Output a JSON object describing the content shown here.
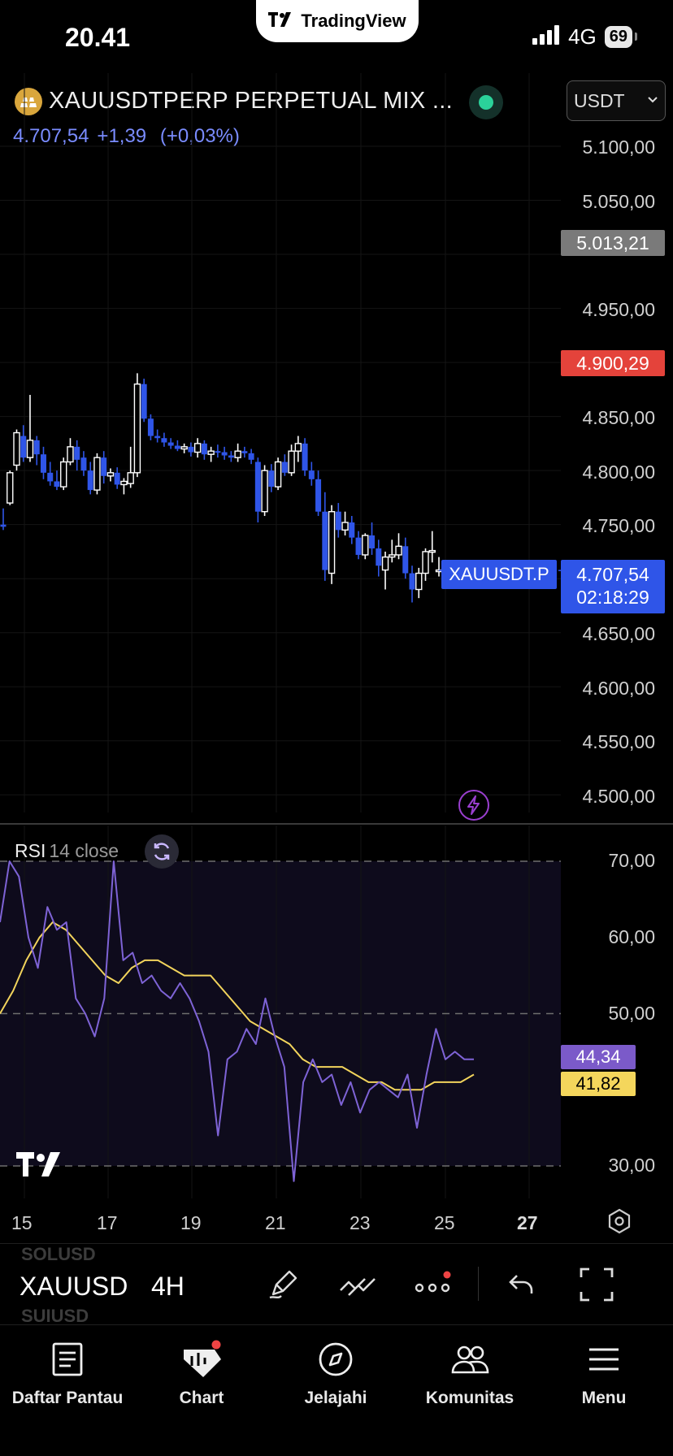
{
  "status_bar": {
    "time": "20.41",
    "network": "4G",
    "battery": "69",
    "app_pill": "TradingView"
  },
  "header": {
    "symbol_title": "XAUUSDTPERP PERPETUAL MIX ...",
    "currency": "USDT",
    "last_price": "4.707,54",
    "change": "+1,39",
    "change_pct": "(+0,03%)"
  },
  "price_axis": [
    "5.100,00",
    "5.050,00",
    "4.950,00",
    "4.850,00",
    "4.800,00",
    "4.750,00",
    "4.650,00",
    "4.600,00",
    "4.550,00",
    "4.500,00"
  ],
  "price_tags": {
    "gray": "5.013,21",
    "red": "4.900,29",
    "current_price": "4.707,54",
    "countdown": "02:18:29",
    "symbol_label": "XAUUSDT.P"
  },
  "rsi": {
    "title": "RSI",
    "params": "14 close",
    "axis": [
      "70,00",
      "60,00",
      "50,00",
      "30,00"
    ],
    "rsi_value": "44,34",
    "ma_value": "41,82",
    "colors": {
      "rsi": "#7e63d6",
      "ma": "#f2d45c"
    }
  },
  "time_axis": [
    "15",
    "17",
    "19",
    "21",
    "23",
    "25",
    "27"
  ],
  "toolbar": {
    "symbol": "XAUUSD",
    "interval": "4H",
    "ghost_above": "SOLUSD",
    "ghost_below": "SUIUSD"
  },
  "bottom_nav": [
    {
      "label": "Daftar Pantau",
      "icon": "watchlist-icon"
    },
    {
      "label": "Chart",
      "icon": "chart-icon"
    },
    {
      "label": "Jelajahi",
      "icon": "compass-icon"
    },
    {
      "label": "Komunitas",
      "icon": "community-icon"
    },
    {
      "label": "Menu",
      "icon": "menu-icon"
    }
  ],
  "chart_data": {
    "type": "candlestick",
    "categories": [
      "15",
      "17",
      "19",
      "21",
      "23",
      "25",
      "27"
    ],
    "series": [
      {
        "ohlc": [
          [
            4750,
            4765,
            4745,
            4748
          ],
          [
            4770,
            4800,
            4768,
            4798
          ],
          [
            4805,
            4838,
            4800,
            4835
          ],
          [
            4832,
            4842,
            4808,
            4812
          ],
          [
            4812,
            4870,
            4808,
            4828
          ],
          [
            4828,
            4832,
            4805,
            4815
          ],
          [
            4815,
            4822,
            4792,
            4798
          ],
          [
            4798,
            4808,
            4786,
            4790
          ],
          [
            4790,
            4800,
            4782,
            4785
          ],
          [
            4785,
            4812,
            4782,
            4808
          ],
          [
            4808,
            4830,
            4805,
            4822
          ],
          [
            4822,
            4828,
            4800,
            4810
          ],
          [
            4812,
            4818,
            4795,
            4800
          ],
          [
            4800,
            4808,
            4778,
            4782
          ],
          [
            4782,
            4816,
            4778,
            4812
          ],
          [
            4812,
            4818,
            4788,
            4795
          ],
          [
            4795,
            4802,
            4790,
            4798
          ],
          [
            4798,
            4803,
            4783,
            4787
          ],
          [
            4787,
            4793,
            4778,
            4790
          ],
          [
            4788,
            4822,
            4784,
            4798
          ],
          [
            4798,
            4890,
            4794,
            4880
          ],
          [
            4880,
            4885,
            4845,
            4848
          ],
          [
            4848,
            4852,
            4828,
            4832
          ],
          [
            4832,
            4838,
            4826,
            4830
          ],
          [
            4830,
            4835,
            4822,
            4826
          ],
          [
            4826,
            4830,
            4820,
            4823
          ],
          [
            4823,
            4828,
            4818,
            4820
          ],
          [
            4820,
            4825,
            4816,
            4822
          ],
          [
            4822,
            4826,
            4813,
            4817
          ],
          [
            4817,
            4830,
            4812,
            4825
          ],
          [
            4825,
            4828,
            4810,
            4815
          ],
          [
            4815,
            4822,
            4808,
            4818
          ],
          [
            4818,
            4824,
            4812,
            4817
          ],
          [
            4817,
            4822,
            4810,
            4814
          ],
          [
            4814,
            4818,
            4808,
            4812
          ],
          [
            4812,
            4825,
            4808,
            4818
          ],
          [
            4818,
            4822,
            4812,
            4816
          ],
          [
            4816,
            4820,
            4806,
            4810
          ],
          [
            4808,
            4812,
            4752,
            4762
          ],
          [
            4762,
            4805,
            4758,
            4800
          ],
          [
            4800,
            4806,
            4780,
            4785
          ],
          [
            4785,
            4812,
            4782,
            4808
          ],
          [
            4808,
            4815,
            4795,
            4798
          ],
          [
            4798,
            4824,
            4795,
            4818
          ],
          [
            4818,
            4832,
            4808,
            4825
          ],
          [
            4825,
            4830,
            4795,
            4800
          ],
          [
            4800,
            4808,
            4786,
            4792
          ],
          [
            4792,
            4800,
            4758,
            4762
          ],
          [
            4762,
            4780,
            4698,
            4708
          ],
          [
            4705,
            4768,
            4695,
            4762
          ],
          [
            4762,
            4770,
            4738,
            4745
          ],
          [
            4745,
            4762,
            4740,
            4752
          ],
          [
            4752,
            4758,
            4732,
            4738
          ],
          [
            4738,
            4744,
            4718,
            4722
          ],
          [
            4722,
            4742,
            4718,
            4740
          ],
          [
            4740,
            4752,
            4722,
            4728
          ],
          [
            4728,
            4736,
            4702,
            4712
          ],
          [
            4708,
            4725,
            4690,
            4720
          ],
          [
            4720,
            4736,
            4715,
            4722
          ],
          [
            4722,
            4742,
            4718,
            4730
          ],
          [
            4730,
            4738,
            4700,
            4705
          ],
          [
            4705,
            4712,
            4678,
            4690
          ],
          [
            4690,
            4710,
            4682,
            4705
          ],
          [
            4705,
            4728,
            4698,
            4725
          ],
          [
            4725,
            4744,
            4715,
            4726
          ],
          [
            4707,
            4720,
            4702,
            4708
          ]
        ]
      }
    ],
    "rsi_series": [
      {
        "name": "RSI",
        "values": [
          62,
          70,
          68,
          60,
          56,
          64,
          61,
          62,
          52,
          50,
          47,
          52,
          70,
          57,
          58,
          54,
          55,
          53,
          52,
          54,
          52,
          49,
          45,
          34,
          44,
          45,
          48,
          46,
          52,
          47,
          43,
          28,
          41,
          44,
          41,
          42,
          38,
          41,
          37,
          40,
          41,
          40,
          39,
          42,
          35,
          42,
          48,
          44,
          45,
          44,
          44
        ]
      },
      {
        "name": "RSI MA",
        "values": [
          50,
          53,
          57,
          60,
          62,
          61,
          59,
          57,
          55,
          54,
          56,
          57,
          57,
          56,
          55,
          55,
          55,
          53,
          51,
          49,
          48,
          47,
          46,
          44,
          43,
          43,
          43,
          42,
          41,
          41,
          40,
          40,
          40,
          41,
          41,
          41,
          42
        ]
      }
    ],
    "ylim": [
      4500,
      5100
    ],
    "rsi_ylim": [
      30,
      70
    ]
  }
}
